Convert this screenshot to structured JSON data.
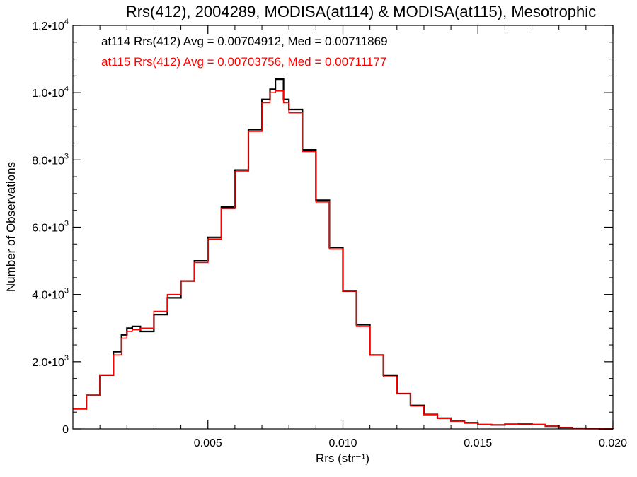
{
  "chart_data": {
    "type": "line",
    "title": "Rrs(412), 2004289, MODISA(at114) & MODISA(at115), Mesotrophic",
    "xlabel": "Rrs (str⁻¹)",
    "ylabel": "Number of Observations",
    "xlim": [
      0.0,
      0.02
    ],
    "ylim": [
      0,
      12000
    ],
    "x_ticks": [
      0.005,
      0.01,
      0.015,
      0.02
    ],
    "x_tick_labels": [
      "0.005",
      "0.010",
      "0.015",
      "0.020"
    ],
    "y_ticks": [
      0,
      2000,
      4000,
      6000,
      8000,
      10000,
      12000
    ],
    "y_tick_labels": [
      {
        "mant": "0",
        "exp": ""
      },
      {
        "mant": "2.0•10",
        "exp": "3"
      },
      {
        "mant": "4.0•10",
        "exp": "3"
      },
      {
        "mant": "6.0•10",
        "exp": "3"
      },
      {
        "mant": "8.0•10",
        "exp": "3"
      },
      {
        "mant": "1.0•10",
        "exp": "4"
      },
      {
        "mant": "1.2•10",
        "exp": "4"
      }
    ],
    "grid": false,
    "legend_position": "top-left",
    "series": [
      {
        "name": "at114 Rrs(412) Avg = 0.00704912, Med = 0.00711869",
        "color": "#000000",
        "x": [
          0.0,
          0.0005,
          0.001,
          0.0015,
          0.0018,
          0.002,
          0.0022,
          0.0025,
          0.003,
          0.0035,
          0.004,
          0.0045,
          0.005,
          0.0055,
          0.006,
          0.0065,
          0.007,
          0.0073,
          0.0075,
          0.0078,
          0.008,
          0.0085,
          0.009,
          0.0095,
          0.01,
          0.0105,
          0.011,
          0.0115,
          0.012,
          0.0125,
          0.013,
          0.0135,
          0.014,
          0.0145,
          0.015,
          0.0155,
          0.016,
          0.0165,
          0.017,
          0.0175,
          0.018,
          0.0185,
          0.019,
          0.0195,
          0.02
        ],
        "y": [
          600,
          1000,
          1600,
          2300,
          2800,
          3000,
          3050,
          2900,
          3400,
          3900,
          4400,
          5000,
          5700,
          6600,
          7700,
          8900,
          9800,
          10100,
          10400,
          9800,
          9500,
          8300,
          6800,
          5400,
          4100,
          3100,
          2200,
          1600,
          1050,
          700,
          430,
          320,
          240,
          180,
          130,
          120,
          140,
          150,
          130,
          80,
          40,
          20,
          10,
          5,
          0
        ]
      },
      {
        "name": "at115 Rrs(412) Avg = 0.00703756, Med = 0.00711177",
        "color": "#ff0000",
        "x": [
          0.0,
          0.0005,
          0.001,
          0.0015,
          0.0018,
          0.002,
          0.0022,
          0.0025,
          0.003,
          0.0035,
          0.004,
          0.0045,
          0.005,
          0.0055,
          0.006,
          0.0065,
          0.007,
          0.0073,
          0.0075,
          0.0078,
          0.008,
          0.0085,
          0.009,
          0.0095,
          0.01,
          0.0105,
          0.011,
          0.0115,
          0.012,
          0.0125,
          0.013,
          0.0135,
          0.014,
          0.0145,
          0.015,
          0.0155,
          0.016,
          0.0165,
          0.017,
          0.0175,
          0.018,
          0.0185,
          0.019,
          0.0195,
          0.02
        ],
        "y": [
          600,
          1000,
          1600,
          2200,
          2700,
          2900,
          2950,
          3000,
          3500,
          4000,
          4400,
          4950,
          5650,
          6550,
          7650,
          8850,
          9700,
          10000,
          10050,
          9700,
          9400,
          8250,
          6750,
          5350,
          4100,
          3050,
          2200,
          1550,
          1050,
          680,
          430,
          310,
          230,
          170,
          130,
          120,
          140,
          150,
          130,
          80,
          40,
          20,
          10,
          5,
          0
        ]
      }
    ]
  }
}
